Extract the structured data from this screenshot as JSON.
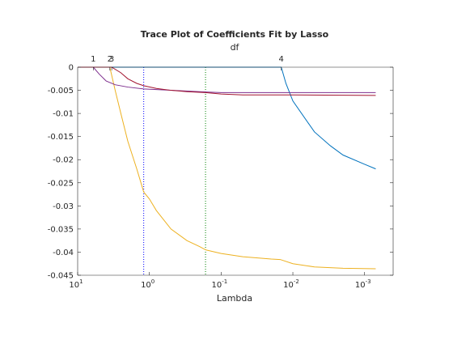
{
  "chart_data": {
    "type": "line",
    "title": "Trace Plot of Coefficients Fit by Lasso",
    "top_label": "df",
    "xlabel": "Lambda",
    "ylabel": "",
    "x_scale": "log",
    "x_reversed": true,
    "xlim": [
      10,
      0.0004
    ],
    "ylim": [
      -0.045,
      0
    ],
    "x_ticks": [
      {
        "value": 10,
        "base": "10",
        "exp": "1"
      },
      {
        "value": 1,
        "base": "10",
        "exp": "0"
      },
      {
        "value": 0.1,
        "base": "10",
        "exp": "-1"
      },
      {
        "value": 0.01,
        "base": "10",
        "exp": "-2"
      },
      {
        "value": 0.001,
        "base": "10",
        "exp": "-3"
      }
    ],
    "y_ticks": [
      {
        "value": 0,
        "label": "0"
      },
      {
        "value": -0.005,
        "label": "-0.005"
      },
      {
        "value": -0.01,
        "label": "-0.01"
      },
      {
        "value": -0.015,
        "label": "-0.015"
      },
      {
        "value": -0.02,
        "label": "-0.02"
      },
      {
        "value": -0.025,
        "label": "-0.025"
      },
      {
        "value": -0.03,
        "label": "-0.03"
      },
      {
        "value": -0.035,
        "label": "-0.035"
      },
      {
        "value": -0.04,
        "label": "-0.04"
      },
      {
        "value": -0.045,
        "label": "-0.045"
      }
    ],
    "df_ticks": [
      {
        "lambda": 6.05,
        "label": "1"
      },
      {
        "lambda": 3.56,
        "label": "2"
      },
      {
        "lambda": 3.35,
        "label": "3"
      },
      {
        "lambda": 0.0145,
        "label": "4"
      }
    ],
    "reference_lines": [
      {
        "lambda": 1.2,
        "color": "#0000ff",
        "style": "dotted"
      },
      {
        "lambda": 0.165,
        "color": "#008000",
        "style": "dotted"
      }
    ],
    "series": [
      {
        "color": "#0072bd",
        "points": [
          [
            10,
            0
          ],
          [
            0.0145,
            0
          ],
          [
            0.0125,
            -0.0035
          ],
          [
            0.01,
            -0.0073
          ],
          [
            0.005,
            -0.014
          ],
          [
            0.003,
            -0.017
          ],
          [
            0.002,
            -0.019
          ],
          [
            0.001,
            -0.021
          ],
          [
            0.0007,
            -0.022
          ]
        ]
      },
      {
        "color": "#edb120",
        "points": [
          [
            10,
            0
          ],
          [
            3.56,
            0
          ],
          [
            3,
            -0.005
          ],
          [
            2.5,
            -0.01
          ],
          [
            2,
            -0.016
          ],
          [
            1.5,
            -0.022
          ],
          [
            1.2,
            -0.027
          ],
          [
            1,
            -0.0285
          ],
          [
            0.8,
            -0.031
          ],
          [
            0.5,
            -0.035
          ],
          [
            0.3,
            -0.0375
          ],
          [
            0.2,
            -0.0388
          ],
          [
            0.165,
            -0.0395
          ],
          [
            0.1,
            -0.0403
          ],
          [
            0.05,
            -0.041
          ],
          [
            0.02,
            -0.0415
          ],
          [
            0.015,
            -0.0416
          ],
          [
            0.01,
            -0.0425
          ],
          [
            0.005,
            -0.0432
          ],
          [
            0.002,
            -0.0435
          ],
          [
            0.0007,
            -0.0436
          ]
        ]
      },
      {
        "color": "#7e2f8e",
        "points": [
          [
            10,
            0
          ],
          [
            6.05,
            0
          ],
          [
            5,
            -0.0015
          ],
          [
            4,
            -0.003
          ],
          [
            3,
            -0.0038
          ],
          [
            2,
            -0.0043
          ],
          [
            1.2,
            -0.0047
          ],
          [
            0.5,
            -0.005
          ],
          [
            0.2,
            -0.0053
          ],
          [
            0.1,
            -0.0055
          ],
          [
            0.01,
            -0.0055
          ],
          [
            0.0007,
            -0.0055
          ]
        ]
      },
      {
        "color": "#a2142f",
        "points": [
          [
            10,
            0
          ],
          [
            3.35,
            0
          ],
          [
            2.5,
            -0.0012
          ],
          [
            2,
            -0.0025
          ],
          [
            1.5,
            -0.0035
          ],
          [
            1.2,
            -0.004
          ],
          [
            0.8,
            -0.0046
          ],
          [
            0.5,
            -0.005
          ],
          [
            0.3,
            -0.0053
          ],
          [
            0.165,
            -0.0055
          ],
          [
            0.1,
            -0.0058
          ],
          [
            0.05,
            -0.006
          ],
          [
            0.01,
            -0.006
          ],
          [
            0.0007,
            -0.0061
          ]
        ]
      }
    ]
  }
}
